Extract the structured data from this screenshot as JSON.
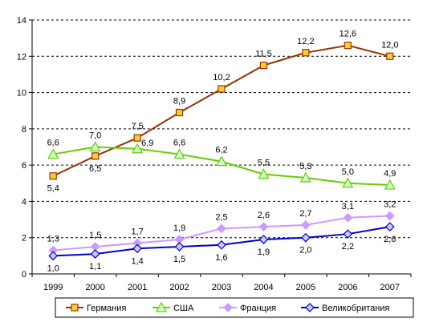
{
  "chart_data": {
    "type": "line",
    "title": "",
    "xlabel": "",
    "ylabel": "",
    "x": [
      "1999",
      "2000",
      "2001",
      "2002",
      "2003",
      "2004",
      "2005",
      "2006",
      "2007"
    ],
    "ylim": [
      0,
      14
    ],
    "yticks": [
      "0",
      "2",
      "4",
      "6",
      "8",
      "10",
      "12",
      "14"
    ],
    "grid": "horizontal dashed",
    "legend_position": "bottom",
    "series": [
      {
        "name": "Германия",
        "marker": "square",
        "line_color": "#993300",
        "marker_fill": "#FFCC33",
        "values": [
          5.4,
          6.5,
          7.5,
          8.9,
          10.2,
          11.5,
          12.2,
          12.6,
          12.0
        ],
        "labels": [
          "5,4",
          "6,5",
          "7,5",
          "8,9",
          "10,2",
          "11,5",
          "12,2",
          "12,6",
          "12,0"
        ],
        "label_side": [
          "below",
          "below",
          "above",
          "above",
          "above",
          "above",
          "above",
          "above",
          "above"
        ]
      },
      {
        "name": "США",
        "marker": "triangle",
        "line_color": "#66CC00",
        "marker_fill": "#CCFFCC",
        "values": [
          6.6,
          7.0,
          6.9,
          6.6,
          6.2,
          5.5,
          5.3,
          5.0,
          4.9
        ],
        "labels": [
          "6,6",
          "7,0",
          "6,9",
          "6,6",
          "6,2",
          "5,5",
          "5,3",
          "5,0",
          "4,9"
        ],
        "label_side": [
          "above",
          "above",
          "right",
          "above",
          "above",
          "above",
          "above",
          "above",
          "above"
        ]
      },
      {
        "name": "Франция",
        "marker": "diamond",
        "line_color": "#CC99FF",
        "marker_fill": "#CC99FF",
        "values": [
          1.3,
          1.5,
          1.7,
          1.9,
          2.5,
          2.6,
          2.7,
          3.1,
          3.2
        ],
        "labels": [
          "1,3",
          "1,5",
          "1,7",
          "1,9",
          "2,5",
          "2,6",
          "2,7",
          "3,1",
          "3,2"
        ],
        "label_side": [
          "above",
          "above",
          "above",
          "above",
          "above",
          "above",
          "above",
          "above",
          "above"
        ]
      },
      {
        "name": "Великобритания",
        "marker": "diamond",
        "line_color": "#0000CC",
        "marker_fill": "#CCCCFF",
        "values": [
          1.0,
          1.1,
          1.4,
          1.5,
          1.6,
          1.9,
          2.0,
          2.2,
          2.6
        ],
        "labels": [
          "1,0",
          "1,1",
          "1,4",
          "1,5",
          "1,6",
          "1,9",
          "2,0",
          "2,2",
          "2,6"
        ],
        "label_side": [
          "below",
          "below",
          "below",
          "below",
          "below",
          "below",
          "below",
          "below",
          "below"
        ]
      }
    ]
  }
}
